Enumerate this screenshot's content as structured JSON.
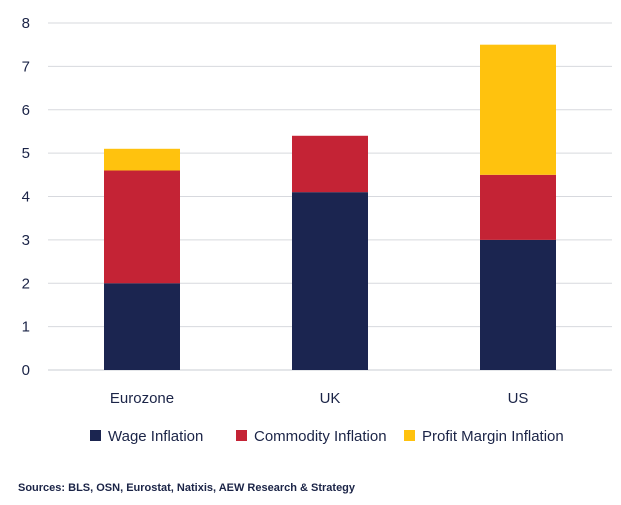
{
  "chart_data": {
    "type": "bar",
    "stacked": true,
    "categories": [
      "Eurozone",
      "UK",
      "US"
    ],
    "series": [
      {
        "name": "Wage Inflation",
        "color": "#1b2550",
        "values": [
          2.0,
          4.1,
          3.0
        ]
      },
      {
        "name": "Commodity Inflation",
        "color": "#c42335",
        "values": [
          2.6,
          1.3,
          1.5
        ]
      },
      {
        "name": "Profit Margin Inflation",
        "color": "#ffc20e",
        "values": [
          0.5,
          0.0,
          3.0
        ]
      }
    ],
    "y_ticks": [
      "0",
      "1",
      "2",
      "3",
      "4",
      "5",
      "6",
      "7",
      "8"
    ],
    "ylim": [
      0,
      8
    ],
    "grid": true,
    "legend_position": "bottom"
  },
  "source_text": "Sources: BLS, OSN, Eurostat, Natixis, AEW Research & Strategy"
}
